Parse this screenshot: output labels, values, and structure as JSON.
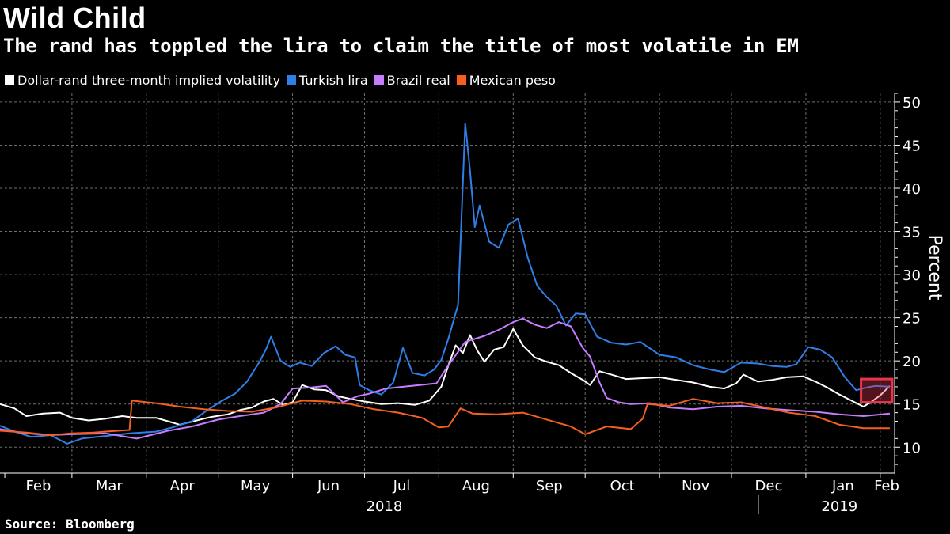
{
  "title": "Wild Child",
  "subtitle": "The rand has toppled the lira to claim the title of most volatile in EM",
  "source": "Source: Bloomberg",
  "colors": {
    "background": "#000000",
    "grid": "#6e6e6e",
    "highlight": "#e8364f"
  },
  "chart_data": {
    "type": "line",
    "title": "Wild Child",
    "subtitle": "The rand has toppled the lira to claim the title of most volatile in EM",
    "ylabel": "Percent",
    "ylim": [
      7,
      51
    ],
    "yticks": [
      10,
      15,
      20,
      25,
      30,
      35,
      40,
      45,
      50
    ],
    "xlim": [
      "2018-01-30",
      "2019-02-07"
    ],
    "months": [
      {
        "label": "Feb",
        "date": "2018-02-01"
      },
      {
        "label": "Mar",
        "date": "2018-03-01"
      },
      {
        "label": "Apr",
        "date": "2018-04-01"
      },
      {
        "label": "May",
        "date": "2018-05-01"
      },
      {
        "label": "Jun",
        "date": "2018-06-01"
      },
      {
        "label": "Jul",
        "date": "2018-07-01"
      },
      {
        "label": "Aug",
        "date": "2018-08-01"
      },
      {
        "label": "Sep",
        "date": "2018-09-01"
      },
      {
        "label": "Oct",
        "date": "2018-10-01"
      },
      {
        "label": "Nov",
        "date": "2018-11-01"
      },
      {
        "label": "Dec",
        "date": "2018-12-01"
      },
      {
        "label": "Jan",
        "date": "2019-01-01"
      },
      {
        "label": "Feb",
        "date": "2019-02-01"
      }
    ],
    "years": [
      {
        "label": "2018",
        "date": "2018-07-01"
      },
      {
        "label": "2019",
        "date": "2019-01-15"
      }
    ],
    "grid": true,
    "legend_position": "top-left",
    "highlight_box": {
      "x": [
        "2019-01-24",
        "2019-02-06"
      ],
      "y": [
        15.2,
        17.9
      ]
    },
    "series": [
      {
        "name": "Dollar-rand three-month implied volatility",
        "color": "#ffffff",
        "points": [
          [
            "2018-01-30",
            15.0
          ],
          [
            "2018-02-05",
            14.5
          ],
          [
            "2018-02-10",
            13.6
          ],
          [
            "2018-02-17",
            13.9
          ],
          [
            "2018-02-24",
            14.0
          ],
          [
            "2018-03-01",
            13.4
          ],
          [
            "2018-03-08",
            13.1
          ],
          [
            "2018-03-15",
            13.3
          ],
          [
            "2018-03-22",
            13.6
          ],
          [
            "2018-03-28",
            13.4
          ],
          [
            "2018-04-05",
            13.4
          ],
          [
            "2018-04-10",
            13.0
          ],
          [
            "2018-04-15",
            12.6
          ],
          [
            "2018-04-22",
            13.1
          ],
          [
            "2018-04-28",
            13.5
          ],
          [
            "2018-05-05",
            13.8
          ],
          [
            "2018-05-10",
            14.3
          ],
          [
            "2018-05-15",
            14.6
          ],
          [
            "2018-05-20",
            15.3
          ],
          [
            "2018-05-24",
            15.6
          ],
          [
            "2018-05-28",
            14.9
          ],
          [
            "2018-06-01",
            15.2
          ],
          [
            "2018-06-05",
            17.2
          ],
          [
            "2018-06-10",
            16.7
          ],
          [
            "2018-06-15",
            16.6
          ],
          [
            "2018-06-20",
            15.9
          ],
          [
            "2018-06-25",
            15.6
          ],
          [
            "2018-07-01",
            15.3
          ],
          [
            "2018-07-08",
            15.0
          ],
          [
            "2018-07-15",
            15.1
          ],
          [
            "2018-07-22",
            14.9
          ],
          [
            "2018-07-28",
            15.4
          ],
          [
            "2018-08-02",
            17.0
          ],
          [
            "2018-08-05",
            19.5
          ],
          [
            "2018-08-08",
            21.8
          ],
          [
            "2018-08-11",
            20.9
          ],
          [
            "2018-08-14",
            23.0
          ],
          [
            "2018-08-17",
            21.2
          ],
          [
            "2018-08-20",
            19.9
          ],
          [
            "2018-08-24",
            21.3
          ],
          [
            "2018-08-28",
            21.6
          ],
          [
            "2018-09-01",
            23.7
          ],
          [
            "2018-09-05",
            21.8
          ],
          [
            "2018-09-10",
            20.4
          ],
          [
            "2018-09-15",
            19.9
          ],
          [
            "2018-09-20",
            19.5
          ],
          [
            "2018-09-25",
            18.6
          ],
          [
            "2018-09-30",
            17.8
          ],
          [
            "2018-10-03",
            17.2
          ],
          [
            "2018-10-07",
            18.8
          ],
          [
            "2018-10-12",
            18.4
          ],
          [
            "2018-10-18",
            17.9
          ],
          [
            "2018-10-25",
            18.0
          ],
          [
            "2018-11-01",
            18.1
          ],
          [
            "2018-11-08",
            17.8
          ],
          [
            "2018-11-15",
            17.5
          ],
          [
            "2018-11-22",
            17.0
          ],
          [
            "2018-11-28",
            16.8
          ],
          [
            "2018-12-03",
            17.4
          ],
          [
            "2018-12-06",
            18.4
          ],
          [
            "2018-12-12",
            17.6
          ],
          [
            "2018-12-18",
            17.8
          ],
          [
            "2018-12-24",
            18.1
          ],
          [
            "2018-12-31",
            18.2
          ],
          [
            "2019-01-05",
            17.6
          ],
          [
            "2019-01-10",
            16.9
          ],
          [
            "2019-01-15",
            16.1
          ],
          [
            "2019-01-20",
            15.4
          ],
          [
            "2019-01-25",
            14.7
          ],
          [
            "2019-01-28",
            15.2
          ],
          [
            "2019-02-01",
            16.0
          ],
          [
            "2019-02-05",
            17.1
          ]
        ]
      },
      {
        "name": "Turkish lira",
        "color": "#2f7fe8",
        "points": [
          [
            "2018-01-30",
            12.5
          ],
          [
            "2018-02-05",
            11.8
          ],
          [
            "2018-02-12",
            11.2
          ],
          [
            "2018-02-20",
            11.4
          ],
          [
            "2018-02-27",
            10.4
          ],
          [
            "2018-03-05",
            11.0
          ],
          [
            "2018-03-15",
            11.3
          ],
          [
            "2018-03-25",
            11.6
          ],
          [
            "2018-04-05",
            11.8
          ],
          [
            "2018-04-12",
            12.3
          ],
          [
            "2018-04-20",
            13.0
          ],
          [
            "2018-04-26",
            14.2
          ],
          [
            "2018-05-02",
            15.3
          ],
          [
            "2018-05-08",
            16.2
          ],
          [
            "2018-05-13",
            17.6
          ],
          [
            "2018-05-18",
            19.8
          ],
          [
            "2018-05-21",
            21.4
          ],
          [
            "2018-05-23",
            22.8
          ],
          [
            "2018-05-27",
            20.0
          ],
          [
            "2018-05-31",
            19.3
          ],
          [
            "2018-06-04",
            19.8
          ],
          [
            "2018-06-09",
            19.4
          ],
          [
            "2018-06-14",
            20.9
          ],
          [
            "2018-06-19",
            21.7
          ],
          [
            "2018-06-23",
            20.7
          ],
          [
            "2018-06-27",
            20.4
          ],
          [
            "2018-06-29",
            17.2
          ],
          [
            "2018-07-03",
            16.6
          ],
          [
            "2018-07-08",
            16.1
          ],
          [
            "2018-07-13",
            17.5
          ],
          [
            "2018-07-17",
            21.5
          ],
          [
            "2018-07-21",
            18.6
          ],
          [
            "2018-07-26",
            18.3
          ],
          [
            "2018-07-30",
            19.0
          ],
          [
            "2018-08-02",
            20.1
          ],
          [
            "2018-08-05",
            22.6
          ],
          [
            "2018-08-09",
            26.5
          ],
          [
            "2018-08-12",
            47.5
          ],
          [
            "2018-08-14",
            42.0
          ],
          [
            "2018-08-16",
            35.5
          ],
          [
            "2018-08-18",
            38.0
          ],
          [
            "2018-08-22",
            33.8
          ],
          [
            "2018-08-26",
            33.1
          ],
          [
            "2018-08-30",
            35.8
          ],
          [
            "2018-09-03",
            36.5
          ],
          [
            "2018-09-07",
            32.0
          ],
          [
            "2018-09-11",
            28.7
          ],
          [
            "2018-09-15",
            27.4
          ],
          [
            "2018-09-19",
            26.4
          ],
          [
            "2018-09-23",
            24.1
          ],
          [
            "2018-09-27",
            25.5
          ],
          [
            "2018-10-01",
            25.4
          ],
          [
            "2018-10-06",
            22.8
          ],
          [
            "2018-10-12",
            22.1
          ],
          [
            "2018-10-18",
            21.9
          ],
          [
            "2018-10-24",
            22.2
          ],
          [
            "2018-11-01",
            20.7
          ],
          [
            "2018-11-08",
            20.4
          ],
          [
            "2018-11-15",
            19.5
          ],
          [
            "2018-11-22",
            19.0
          ],
          [
            "2018-11-28",
            18.7
          ],
          [
            "2018-12-05",
            19.8
          ],
          [
            "2018-12-12",
            19.7
          ],
          [
            "2018-12-18",
            19.4
          ],
          [
            "2018-12-24",
            19.3
          ],
          [
            "2018-12-28",
            19.6
          ],
          [
            "2019-01-02",
            21.6
          ],
          [
            "2019-01-07",
            21.3
          ],
          [
            "2019-01-12",
            20.4
          ],
          [
            "2019-01-17",
            18.2
          ],
          [
            "2019-01-22",
            16.6
          ],
          [
            "2019-01-26",
            16.9
          ],
          [
            "2019-01-30",
            17.1
          ],
          [
            "2019-02-05",
            17.0
          ]
        ]
      },
      {
        "name": "Brazil real",
        "color": "#c67cff",
        "points": [
          [
            "2018-01-30",
            12.1
          ],
          [
            "2018-02-10",
            11.6
          ],
          [
            "2018-02-20",
            11.4
          ],
          [
            "2018-03-01",
            11.5
          ],
          [
            "2018-03-15",
            11.6
          ],
          [
            "2018-03-28",
            11.0
          ],
          [
            "2018-04-10",
            11.9
          ],
          [
            "2018-04-20",
            12.4
          ],
          [
            "2018-05-01",
            13.2
          ],
          [
            "2018-05-10",
            13.6
          ],
          [
            "2018-05-20",
            14.0
          ],
          [
            "2018-05-27",
            15.0
          ],
          [
            "2018-06-01",
            16.8
          ],
          [
            "2018-06-08",
            16.9
          ],
          [
            "2018-06-15",
            17.1
          ],
          [
            "2018-06-22",
            15.2
          ],
          [
            "2018-06-28",
            15.9
          ],
          [
            "2018-07-03",
            16.2
          ],
          [
            "2018-07-10",
            16.8
          ],
          [
            "2018-07-17",
            17.0
          ],
          [
            "2018-07-24",
            17.2
          ],
          [
            "2018-07-31",
            17.4
          ],
          [
            "2018-08-05",
            19.5
          ],
          [
            "2018-08-12",
            22.2
          ],
          [
            "2018-08-20",
            22.9
          ],
          [
            "2018-08-26",
            23.6
          ],
          [
            "2018-09-01",
            24.5
          ],
          [
            "2018-09-05",
            24.9
          ],
          [
            "2018-09-10",
            24.2
          ],
          [
            "2018-09-15",
            23.8
          ],
          [
            "2018-09-20",
            24.5
          ],
          [
            "2018-09-25",
            24.0
          ],
          [
            "2018-09-30",
            21.5
          ],
          [
            "2018-10-03",
            20.5
          ],
          [
            "2018-10-07",
            17.5
          ],
          [
            "2018-10-10",
            15.7
          ],
          [
            "2018-10-15",
            15.2
          ],
          [
            "2018-10-20",
            15.0
          ],
          [
            "2018-10-28",
            15.1
          ],
          [
            "2018-11-05",
            14.6
          ],
          [
            "2018-11-15",
            14.4
          ],
          [
            "2018-11-25",
            14.7
          ],
          [
            "2018-12-05",
            14.8
          ],
          [
            "2018-12-15",
            14.5
          ],
          [
            "2018-12-25",
            14.3
          ],
          [
            "2019-01-05",
            14.1
          ],
          [
            "2019-01-15",
            13.8
          ],
          [
            "2019-01-25",
            13.6
          ],
          [
            "2019-02-05",
            13.9
          ]
        ]
      },
      {
        "name": "Mexican peso",
        "color": "#f5601e",
        "points": [
          [
            "2018-01-30",
            11.9
          ],
          [
            "2018-02-10",
            11.7
          ],
          [
            "2018-02-20",
            11.4
          ],
          [
            "2018-03-01",
            11.6
          ],
          [
            "2018-03-10",
            11.7
          ],
          [
            "2018-03-20",
            11.9
          ],
          [
            "2018-03-25",
            12.0
          ],
          [
            "2018-03-26",
            15.4
          ],
          [
            "2018-04-05",
            15.1
          ],
          [
            "2018-04-15",
            14.7
          ],
          [
            "2018-04-25",
            14.4
          ],
          [
            "2018-05-05",
            14.2
          ],
          [
            "2018-05-15",
            14.1
          ],
          [
            "2018-05-25",
            14.6
          ],
          [
            "2018-06-05",
            15.4
          ],
          [
            "2018-06-15",
            15.3
          ],
          [
            "2018-06-25",
            15.0
          ],
          [
            "2018-07-05",
            14.4
          ],
          [
            "2018-07-15",
            14.0
          ],
          [
            "2018-07-25",
            13.4
          ],
          [
            "2018-08-01",
            12.3
          ],
          [
            "2018-08-05",
            12.4
          ],
          [
            "2018-08-10",
            14.5
          ],
          [
            "2018-08-15",
            13.9
          ],
          [
            "2018-08-25",
            13.8
          ],
          [
            "2018-09-05",
            14.0
          ],
          [
            "2018-09-15",
            13.2
          ],
          [
            "2018-09-25",
            12.4
          ],
          [
            "2018-10-01",
            11.5
          ],
          [
            "2018-10-10",
            12.4
          ],
          [
            "2018-10-20",
            12.1
          ],
          [
            "2018-10-25",
            13.3
          ],
          [
            "2018-10-27",
            15.0
          ],
          [
            "2018-11-05",
            14.8
          ],
          [
            "2018-11-15",
            15.6
          ],
          [
            "2018-11-25",
            15.1
          ],
          [
            "2018-12-05",
            15.2
          ],
          [
            "2018-12-15",
            14.6
          ],
          [
            "2018-12-25",
            14.0
          ],
          [
            "2019-01-05",
            13.6
          ],
          [
            "2019-01-15",
            12.6
          ],
          [
            "2019-01-25",
            12.2
          ],
          [
            "2019-02-05",
            12.2
          ]
        ]
      }
    ]
  }
}
